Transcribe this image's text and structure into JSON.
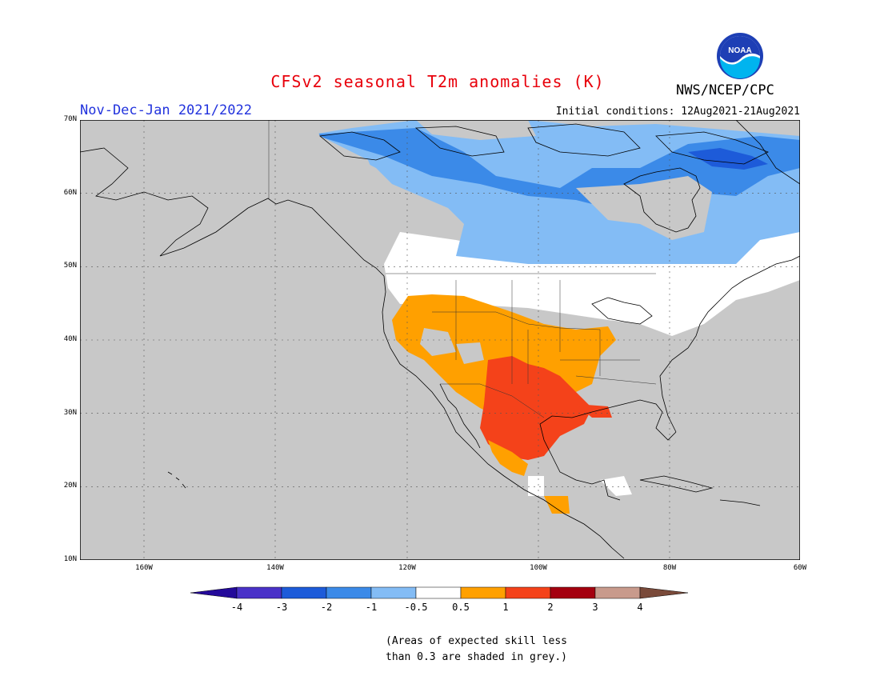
{
  "header": {
    "title": "CFSv2 seasonal T2m anomalies (K)",
    "period": "Nov-Dec-Jan 2021/2022",
    "initial_conditions": "Initial conditions: 12Aug2021-21Aug2021",
    "agency": "NWS/NCEP/CPC",
    "logo_text": "NOAA"
  },
  "colors": {
    "title": "#e8000b",
    "period": "#2233dd",
    "land_grey": "#c8c8c8",
    "ocean_grey": "#c8c8c8",
    "levels": [
      "#240a9a",
      "#4a32c8",
      "#1d5bd9",
      "#3b8ae8",
      "#83bcf5",
      "#ffffff",
      "#ffa000",
      "#f4421a",
      "#a4000f",
      "#c89a8c",
      "#7a4a3a"
    ]
  },
  "map": {
    "lat_labels": [
      "70N",
      "60N",
      "50N",
      "40N",
      "30N",
      "20N",
      "10N"
    ],
    "lon_labels": [
      "160W",
      "140W",
      "120W",
      "100W",
      "80W",
      "60W"
    ],
    "domain": {
      "lon_min": -170,
      "lon_max": -60,
      "lat_min": 10,
      "lat_max": 70
    }
  },
  "colorbar": {
    "labels": [
      "-4",
      "-3",
      "-2",
      "-1",
      "-0.5",
      "0.5",
      "1",
      "2",
      "3",
      "4"
    ]
  },
  "footnote": {
    "line1": "(Areas of expected skill less",
    "line2": "than 0.3 are shaded in grey.)"
  }
}
